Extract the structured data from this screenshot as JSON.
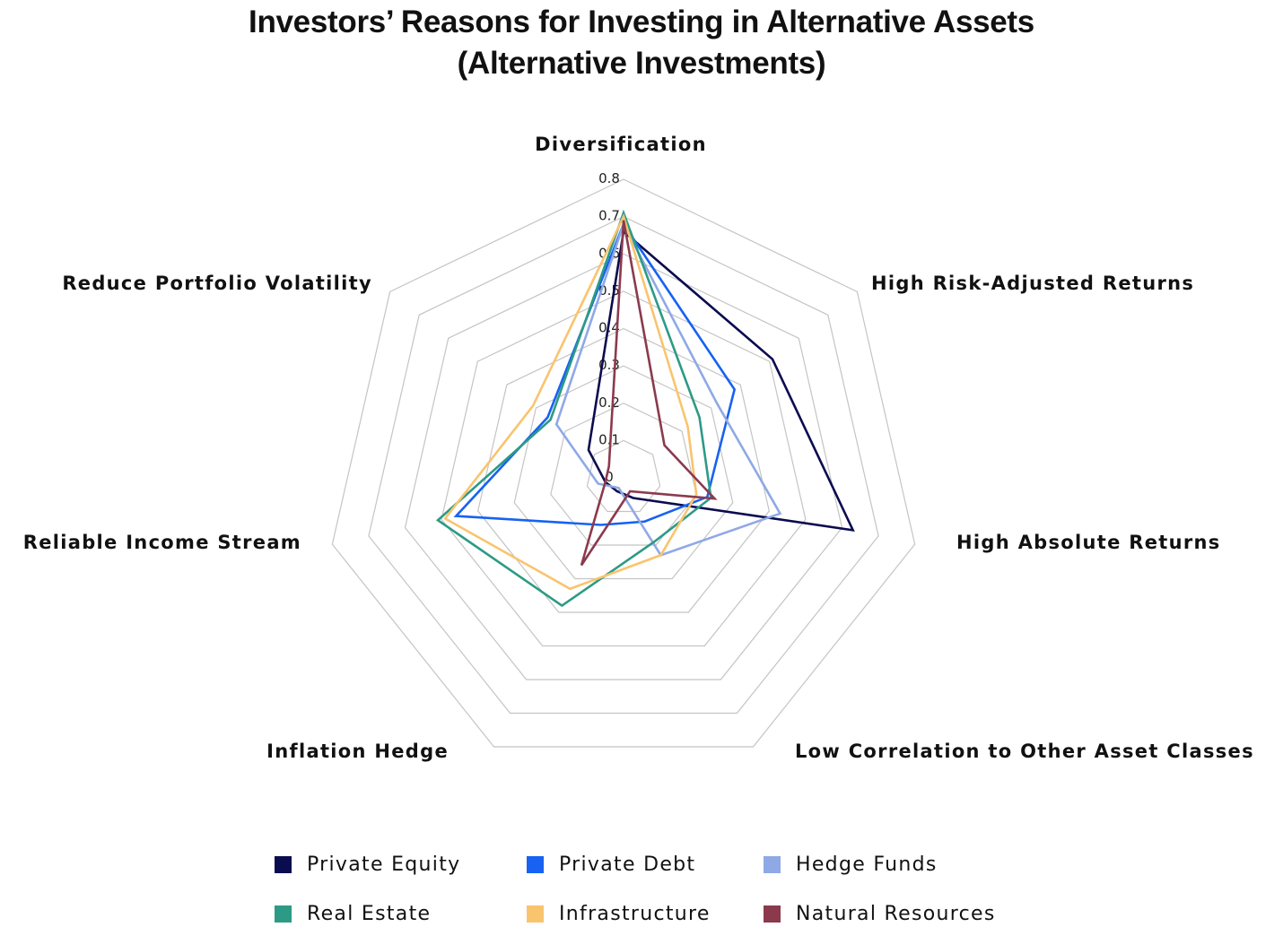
{
  "title": {
    "line1": "Investors’ Reasons for Investing in Alternative Assets",
    "line2": "(Alternative Investments)"
  },
  "chart_data": {
    "type": "radar",
    "axes": [
      "Diversification",
      "High Risk-Adjusted Returns",
      "High Absolute Returns",
      "Low Correlation to Other Asset Classes",
      "Inflation Hedge",
      "Reliable Income Stream",
      "Reduce Portfolio Volatility"
    ],
    "range": [
      0,
      0.8
    ],
    "ticks": [
      "0",
      "0.1",
      "0.2",
      "0.3",
      "0.4",
      "0.5",
      "0.6",
      "0.7",
      "0.8"
    ],
    "grid": true,
    "legend_position": "bottom",
    "series": [
      {
        "name": "Private Equity",
        "color": "#0b0b4f",
        "values": [
          0.66,
          0.51,
          0.63,
          0.06,
          0.04,
          0.05,
          0.12
        ]
      },
      {
        "name": "Private Debt",
        "color": "#1762f2",
        "values": [
          0.68,
          0.38,
          0.23,
          0.13,
          0.14,
          0.46,
          0.26
        ]
      },
      {
        "name": "Hedge Funds",
        "color": "#8fa9e6",
        "values": [
          0.68,
          0.32,
          0.43,
          0.23,
          0.03,
          0.07,
          0.23
        ]
      },
      {
        "name": "Real Estate",
        "color": "#2d9a86",
        "values": [
          0.71,
          0.26,
          0.24,
          0.19,
          0.38,
          0.51,
          0.25
        ]
      },
      {
        "name": "Infrastructure",
        "color": "#f9c46e",
        "values": [
          0.7,
          0.22,
          0.2,
          0.23,
          0.33,
          0.49,
          0.31
        ]
      },
      {
        "name": "Natural Resources",
        "color": "#8b3a4e",
        "values": [
          0.69,
          0.14,
          0.25,
          0.04,
          0.26,
          0.05,
          0.05
        ]
      }
    ]
  }
}
